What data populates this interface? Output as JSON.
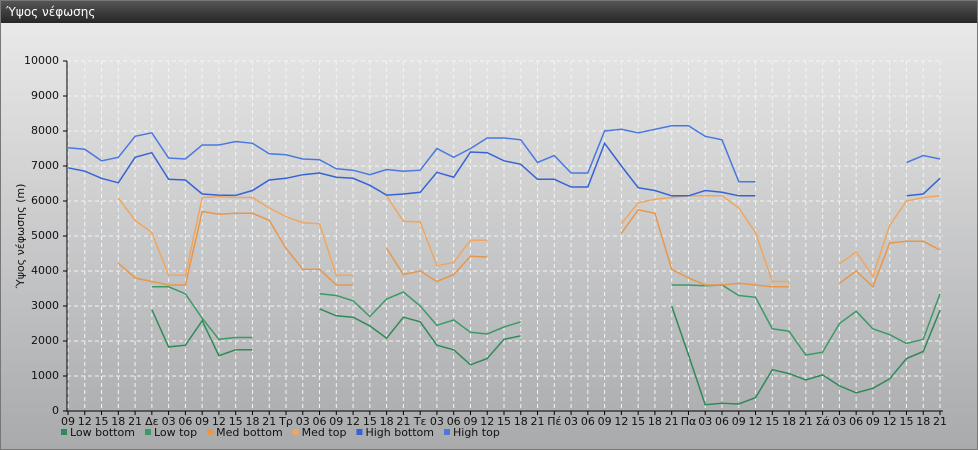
{
  "chart_data": {
    "type": "line",
    "title": "Ύψος νέφωσης",
    "y_label": "Ύψος νέφωσης (m)",
    "categories": [
      "09",
      "12",
      "15",
      "18",
      "21",
      "Δε",
      "03",
      "06",
      "09",
      "12",
      "15",
      "18",
      "21",
      "Τρ",
      "03",
      "06",
      "09",
      "12",
      "15",
      "18",
      "21",
      "Τε",
      "03",
      "06",
      "09",
      "12",
      "15",
      "18",
      "21",
      "Πέ",
      "03",
      "06",
      "09",
      "12",
      "15",
      "18",
      "21",
      "Πα",
      "03",
      "06",
      "09",
      "12",
      "15",
      "18",
      "21",
      "Σά",
      "03",
      "06",
      "09",
      "12",
      "15",
      "18",
      "21"
    ],
    "ylim": [
      0,
      10000
    ],
    "yticks": [
      0,
      1000,
      2000,
      3000,
      4000,
      5000,
      6000,
      7000,
      8000,
      9000,
      10000
    ],
    "grid": true,
    "series": [
      {
        "name": "Low bottom",
        "color": "#2e8b57",
        "values": [
          null,
          null,
          null,
          null,
          null,
          2900,
          1830,
          1880,
          2580,
          1580,
          1750,
          1750,
          null,
          null,
          null,
          2920,
          2720,
          2680,
          2430,
          2080,
          2680,
          2550,
          1880,
          1750,
          1320,
          1500,
          2050,
          2150,
          null,
          null,
          null,
          null,
          null,
          null,
          null,
          null,
          3000,
          1600,
          180,
          220,
          200,
          380,
          1180,
          1070,
          890,
          1030,
          720,
          520,
          650,
          920,
          1500,
          1700,
          2880
        ]
      },
      {
        "name": "Low top",
        "color": "#3c9a66",
        "values": [
          null,
          null,
          null,
          null,
          null,
          3550,
          3550,
          3350,
          2650,
          2050,
          2100,
          2100,
          null,
          null,
          null,
          3350,
          3300,
          3150,
          2700,
          3200,
          3400,
          3000,
          2450,
          2600,
          2250,
          2200,
          2400,
          2550,
          null,
          null,
          null,
          null,
          null,
          null,
          null,
          null,
          3600,
          3600,
          3580,
          3600,
          3300,
          3250,
          2350,
          2280,
          1600,
          1680,
          2500,
          2850,
          2350,
          2180,
          1930,
          2050,
          3350
        ]
      },
      {
        "name": "Med bottom",
        "color": "#e8974a",
        "values": [
          null,
          null,
          null,
          4220,
          3800,
          3700,
          3600,
          3600,
          5700,
          5620,
          5650,
          5650,
          5450,
          4650,
          4050,
          4050,
          3600,
          3600,
          null,
          4650,
          3900,
          4000,
          3700,
          3900,
          4420,
          4400,
          null,
          null,
          null,
          null,
          null,
          null,
          null,
          5080,
          5750,
          5650,
          4050,
          3800,
          3600,
          3600,
          3650,
          3600,
          3550,
          3550,
          null,
          null,
          3650,
          4000,
          3550,
          4800,
          4850,
          4850,
          4600
        ]
      },
      {
        "name": "Med top",
        "color": "#f0a65e",
        "values": [
          null,
          null,
          null,
          6080,
          5450,
          5100,
          3880,
          3880,
          6100,
          6120,
          6100,
          6100,
          5800,
          5550,
          5380,
          5350,
          3880,
          3880,
          null,
          6150,
          5420,
          5400,
          4150,
          4250,
          4880,
          4880,
          null,
          null,
          null,
          null,
          null,
          null,
          null,
          5350,
          5950,
          6050,
          6100,
          6150,
          6150,
          6150,
          5800,
          5100,
          3700,
          3700,
          null,
          null,
          4200,
          4550,
          3850,
          5300,
          6000,
          6100,
          6150
        ]
      },
      {
        "name": "High bottom",
        "color": "#3563d6",
        "values": [
          6950,
          6850,
          6650,
          6520,
          7250,
          7380,
          6620,
          6600,
          6200,
          6170,
          6160,
          6300,
          6600,
          6650,
          6750,
          6800,
          6680,
          6650,
          6450,
          6170,
          6200,
          6250,
          6820,
          6680,
          7400,
          7380,
          7150,
          7050,
          6620,
          6620,
          6400,
          6400,
          7650,
          7000,
          6380,
          6300,
          6150,
          6150,
          6300,
          6250,
          6150,
          6150,
          null,
          null,
          null,
          null,
          null,
          null,
          null,
          null,
          6150,
          6200,
          6650
        ]
      },
      {
        "name": "High top",
        "color": "#4a78e0",
        "values": [
          7520,
          7480,
          7150,
          7250,
          7850,
          7950,
          7230,
          7200,
          7600,
          7600,
          7700,
          7650,
          7350,
          7320,
          7200,
          7180,
          6920,
          6880,
          6750,
          6900,
          6850,
          6880,
          7500,
          7250,
          7500,
          7800,
          7800,
          7750,
          7100,
          7300,
          6800,
          6800,
          8000,
          8050,
          7950,
          8050,
          8150,
          8150,
          7850,
          7750,
          6550,
          6550,
          null,
          null,
          null,
          null,
          null,
          null,
          null,
          null,
          7100,
          7300,
          7200
        ]
      }
    ]
  }
}
